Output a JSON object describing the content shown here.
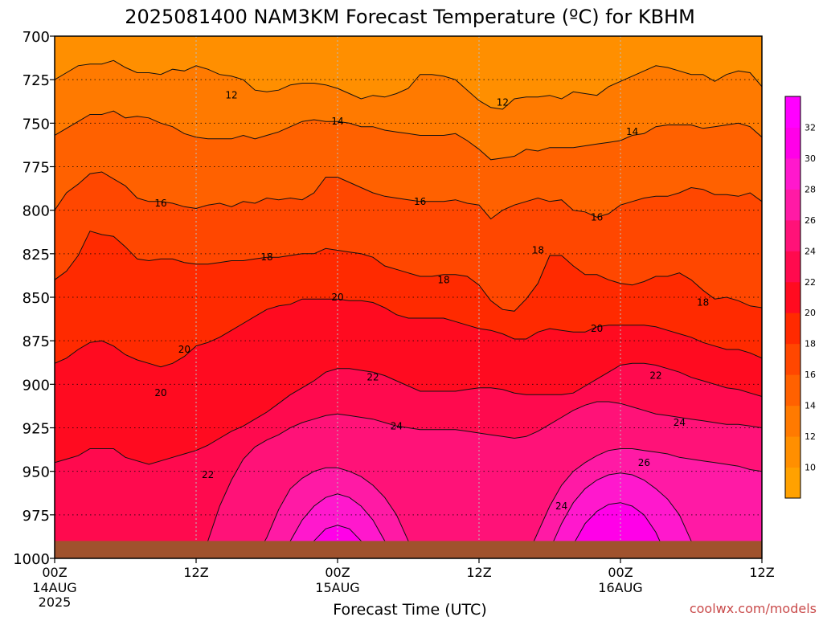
{
  "chart_data": {
    "type": "heatmap",
    "title": "2025081400 NAM3KM Forecast Temperature (ºC) for KBHM",
    "xlabel": "Forecast Time (UTC)",
    "credit": "coolwx.com/models",
    "x_ticks": [
      {
        "hour": 0,
        "label": "00Z",
        "date": "14AUG",
        "year": "2025"
      },
      {
        "hour": 12,
        "label": "12Z",
        "date": "",
        "year": ""
      },
      {
        "hour": 24,
        "label": "00Z",
        "date": "15AUG",
        "year": ""
      },
      {
        "hour": 36,
        "label": "12Z",
        "date": "",
        "year": ""
      },
      {
        "hour": 48,
        "label": "00Z",
        "date": "16AUG",
        "year": ""
      },
      {
        "hour": 60,
        "label": "12Z",
        "date": "",
        "year": ""
      }
    ],
    "xlim": [
      0,
      60
    ],
    "y_ticks": [
      "700",
      "725",
      "750",
      "775",
      "800",
      "825",
      "850",
      "875",
      "900",
      "925",
      "950",
      "975",
      "1000"
    ],
    "ylim": [
      1000,
      700
    ],
    "grid": true,
    "surface_pressure": 990,
    "colorbar": {
      "ticks": [
        "10",
        "12",
        "14",
        "16",
        "18",
        "20",
        "22",
        "24",
        "26",
        "28",
        "30",
        "32"
      ],
      "colors": [
        "#ffa100",
        "#ff8f00",
        "#ff7a00",
        "#ff6100",
        "#ff4700",
        "#ff2a00",
        "#ff0b20",
        "#ff0a4e",
        "#ff1278",
        "#ff1aa5",
        "#ff18cd",
        "#ff00e8",
        "#ff00ff"
      ]
    },
    "series": [
      {
        "name": "12",
        "label_points": [
          [
            15,
            734
          ],
          [
            38,
            738
          ]
        ],
        "y": [
          725,
          721,
          717,
          716,
          716,
          714,
          718,
          721,
          721,
          722,
          719,
          720,
          717,
          719,
          722,
          723,
          725,
          731,
          732,
          731,
          728,
          727,
          727,
          728,
          730,
          733,
          736,
          734,
          735,
          733,
          730,
          722,
          722,
          723,
          725,
          731,
          737,
          741,
          742,
          736,
          735,
          735,
          734,
          736,
          732,
          733,
          734,
          729,
          726,
          723,
          720,
          717,
          718,
          720,
          722,
          722,
          726,
          722,
          720,
          721,
          729
        ]
      },
      {
        "name": "14",
        "label_points": [
          [
            24,
            749
          ],
          [
            49,
            755
          ]
        ],
        "y": [
          757,
          753,
          749,
          745,
          745,
          743,
          747,
          746,
          747,
          750,
          752,
          756,
          758,
          759,
          759,
          759,
          757,
          759,
          757,
          755,
          752,
          749,
          748,
          749,
          749,
          750,
          752,
          752,
          754,
          755,
          756,
          757,
          757,
          757,
          756,
          760,
          765,
          771,
          770,
          769,
          765,
          766,
          764,
          764,
          764,
          763,
          762,
          761,
          760,
          757,
          756,
          752,
          751,
          751,
          751,
          753,
          752,
          751,
          750,
          752,
          758
        ]
      },
      {
        "name": "16",
        "label_points": [
          [
            9,
            796
          ],
          [
            31,
            795
          ],
          [
            46,
            804
          ]
        ],
        "y": [
          800,
          790,
          785,
          779,
          778,
          782,
          786,
          793,
          795,
          795,
          796,
          798,
          799,
          797,
          796,
          798,
          795,
          796,
          793,
          794,
          793,
          794,
          790,
          781,
          781,
          784,
          787,
          790,
          792,
          793,
          794,
          795,
          795,
          795,
          794,
          796,
          797,
          805,
          800,
          797,
          795,
          793,
          795,
          794,
          800,
          801,
          804,
          802,
          797,
          795,
          793,
          792,
          792,
          790,
          787,
          788,
          791,
          791,
          792,
          790,
          795
        ]
      },
      {
        "name": "18",
        "label_points": [
          [
            18,
            827
          ],
          [
            33,
            840
          ],
          [
            41,
            823
          ],
          [
            55,
            853
          ]
        ],
        "y": [
          840,
          835,
          826,
          812,
          814,
          815,
          821,
          828,
          829,
          828,
          828,
          830,
          831,
          831,
          830,
          829,
          829,
          828,
          827,
          827,
          826,
          825,
          825,
          822,
          823,
          824,
          825,
          827,
          832,
          834,
          836,
          838,
          838,
          837,
          837,
          838,
          843,
          852,
          857,
          858,
          851,
          842,
          826,
          826,
          832,
          837,
          837,
          840,
          842,
          843,
          841,
          838,
          838,
          836,
          840,
          846,
          851,
          850,
          852,
          855,
          856
        ]
      },
      {
        "name": "20",
        "label_points": [
          [
            11,
            880
          ],
          [
            24,
            850
          ],
          [
            46,
            868
          ],
          [
            9,
            905
          ]
        ],
        "y": [
          888,
          885,
          880,
          876,
          875,
          878,
          883,
          886,
          888,
          890,
          888,
          884,
          878,
          876,
          873,
          869,
          865,
          861,
          857,
          855,
          854,
          851,
          851,
          851,
          851,
          852,
          852,
          853,
          856,
          860,
          862,
          862,
          862,
          862,
          864,
          866,
          868,
          869,
          871,
          874,
          874,
          870,
          868,
          869,
          870,
          870,
          867,
          866,
          866,
          866,
          866,
          867,
          869,
          871,
          873,
          876,
          878,
          880,
          880,
          882,
          885
        ]
      },
      {
        "name": "22",
        "label_points": [
          [
            13,
            952
          ],
          [
            27,
            896
          ],
          [
            51,
            895
          ]
        ],
        "y": [
          945,
          943,
          941,
          937,
          937,
          937,
          942,
          944,
          946,
          944,
          942,
          940,
          938,
          935,
          931,
          927,
          924,
          920,
          916,
          911,
          906,
          902,
          898,
          893,
          891,
          891,
          892,
          893,
          895,
          898,
          901,
          904,
          904,
          904,
          904,
          903,
          902,
          902,
          903,
          905,
          906,
          906,
          906,
          906,
          905,
          901,
          897,
          893,
          889,
          888,
          888,
          889,
          891,
          893,
          896,
          898,
          900,
          902,
          903,
          905,
          907
        ]
      },
      {
        "name": "24",
        "label_points": [
          [
            29,
            924
          ],
          [
            43,
            970
          ],
          [
            53,
            922
          ]
        ],
        "y": [
          1000,
          1000,
          1000,
          1000,
          1000,
          1000,
          1000,
          1000,
          1000,
          1000,
          1000,
          1000,
          1000,
          990,
          970,
          955,
          943,
          936,
          932,
          929,
          925,
          922,
          920,
          918,
          917,
          918,
          919,
          920,
          922,
          924,
          925,
          926,
          926,
          926,
          926,
          927,
          928,
          929,
          930,
          931,
          930,
          927,
          923,
          919,
          915,
          912,
          910,
          910,
          911,
          913,
          915,
          917,
          918,
          919,
          920,
          921,
          922,
          923,
          923,
          924,
          925
        ]
      },
      {
        "name": "26",
        "label_points": [
          [
            50,
            945
          ]
        ],
        "y": [
          1000,
          1000,
          1000,
          1000,
          1000,
          1000,
          1000,
          1000,
          1000,
          1000,
          1000,
          1000,
          1000,
          1000,
          1000,
          1000,
          1000,
          1000,
          988,
          972,
          960,
          954,
          950,
          948,
          948,
          950,
          953,
          958,
          965,
          975,
          990,
          1000,
          1000,
          1000,
          1000,
          1000,
          1000,
          1000,
          1000,
          1000,
          1000,
          985,
          970,
          958,
          950,
          945,
          941,
          938,
          937,
          937,
          938,
          939,
          940,
          942,
          943,
          944,
          945,
          946,
          947,
          949,
          950
        ]
      },
      {
        "name": "28",
        "label_points": [],
        "y": [
          1000,
          1000,
          1000,
          1000,
          1000,
          1000,
          1000,
          1000,
          1000,
          1000,
          1000,
          1000,
          1000,
          1000,
          1000,
          1000,
          1000,
          1000,
          1000,
          1000,
          990,
          978,
          970,
          965,
          963,
          965,
          970,
          978,
          990,
          1000,
          1000,
          1000,
          1000,
          1000,
          1000,
          1000,
          1000,
          1000,
          1000,
          1000,
          1000,
          1000,
          995,
          980,
          968,
          960,
          955,
          952,
          951,
          952,
          955,
          960,
          966,
          975,
          990,
          1000,
          1000,
          1000,
          1000,
          1000,
          1000
        ]
      },
      {
        "name": "30",
        "label_points": [],
        "y": [
          1000,
          1000,
          1000,
          1000,
          1000,
          1000,
          1000,
          1000,
          1000,
          1000,
          1000,
          1000,
          1000,
          1000,
          1000,
          1000,
          1000,
          1000,
          1000,
          1000,
          1000,
          1000,
          990,
          983,
          981,
          983,
          990,
          1000,
          1000,
          1000,
          1000,
          1000,
          1000,
          1000,
          1000,
          1000,
          1000,
          1000,
          1000,
          1000,
          1000,
          1000,
          1000,
          1000,
          992,
          980,
          973,
          969,
          968,
          970,
          975,
          985,
          1000,
          1000,
          1000,
          1000,
          1000,
          1000,
          1000,
          1000,
          1000
        ]
      }
    ]
  }
}
